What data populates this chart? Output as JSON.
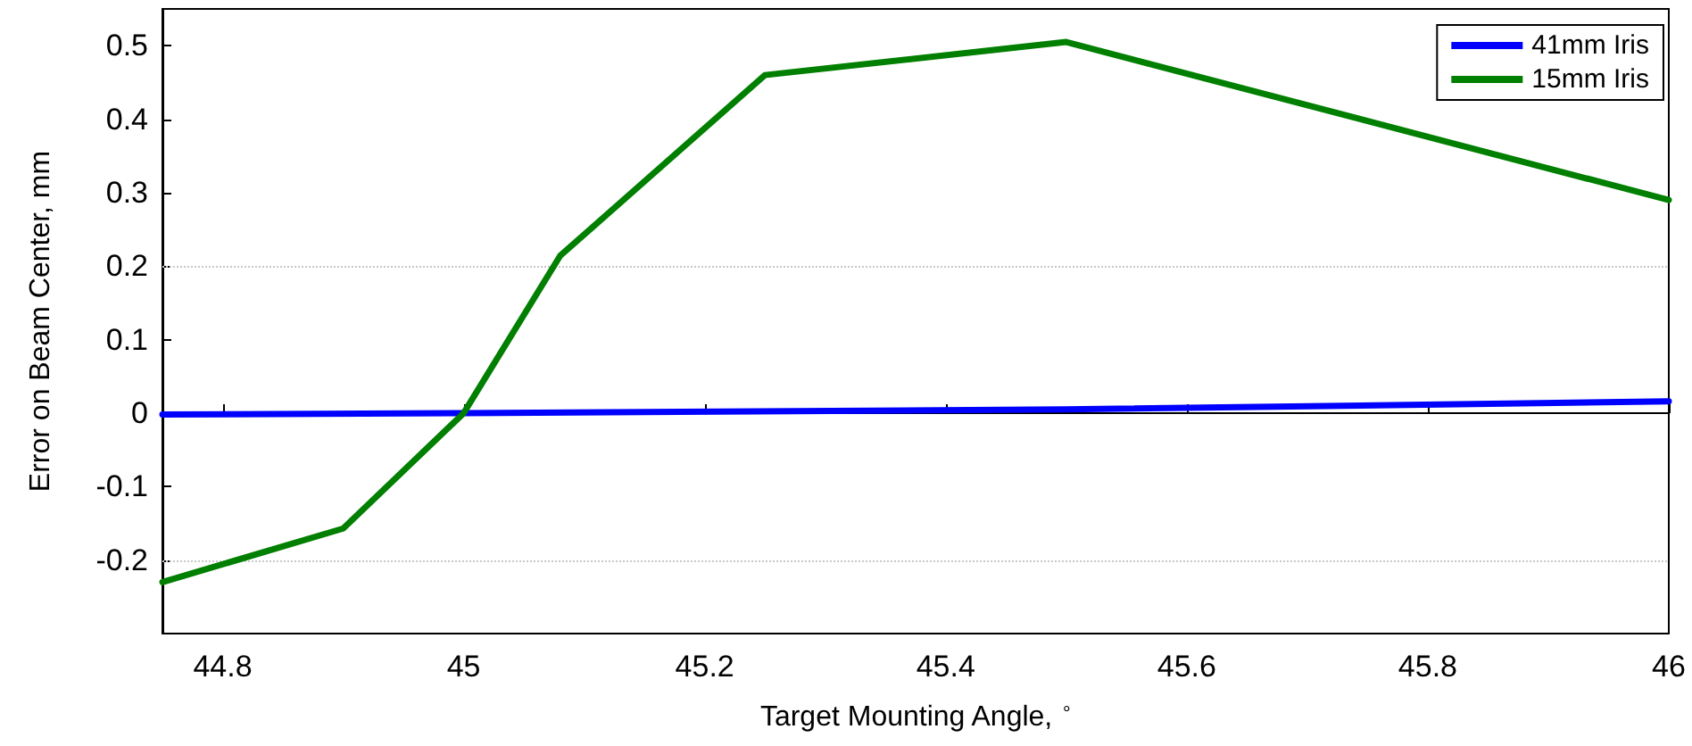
{
  "chart_data": {
    "type": "line",
    "xlabel": "Target Mounting Angle, $^{∘}$",
    "ylabel": "Error on Beam Center, mm",
    "series": [
      {
        "name": "41mm Iris",
        "color": "#0000ff",
        "x": [
          44.75,
          45,
          45.5,
          46
        ],
        "values": [
          -0.002,
          0,
          0.005,
          0.016
        ]
      },
      {
        "name": "15mm Iris",
        "color": "#007f00",
        "x": [
          44.75,
          44.9,
          45,
          45.08,
          45.25,
          45.5,
          46
        ],
        "values": [
          -0.23,
          -0.157,
          0,
          0.214,
          0.46,
          0.505,
          0.29
        ]
      }
    ],
    "xlim": [
      44.75,
      46
    ],
    "xticks": [
      44.8,
      45,
      45.2,
      45.4,
      45.6,
      45.8,
      46
    ],
    "ylim": [
      -0.3,
      0.55
    ],
    "yticks": [
      -0.2,
      -0.1,
      0,
      0.1,
      0.2,
      0.3,
      0.4,
      0.5
    ],
    "ref_lines": [
      {
        "axis": "y",
        "value": 0.2,
        "color": "#c8c8c8",
        "line_style": "dotted"
      },
      {
        "axis": "y",
        "value": -0.2,
        "color": "#c8c8c8",
        "line_style": "dotted"
      }
    ],
    "legend": "top right",
    "grid": false,
    "marker": "none",
    "line_style": "solid"
  }
}
